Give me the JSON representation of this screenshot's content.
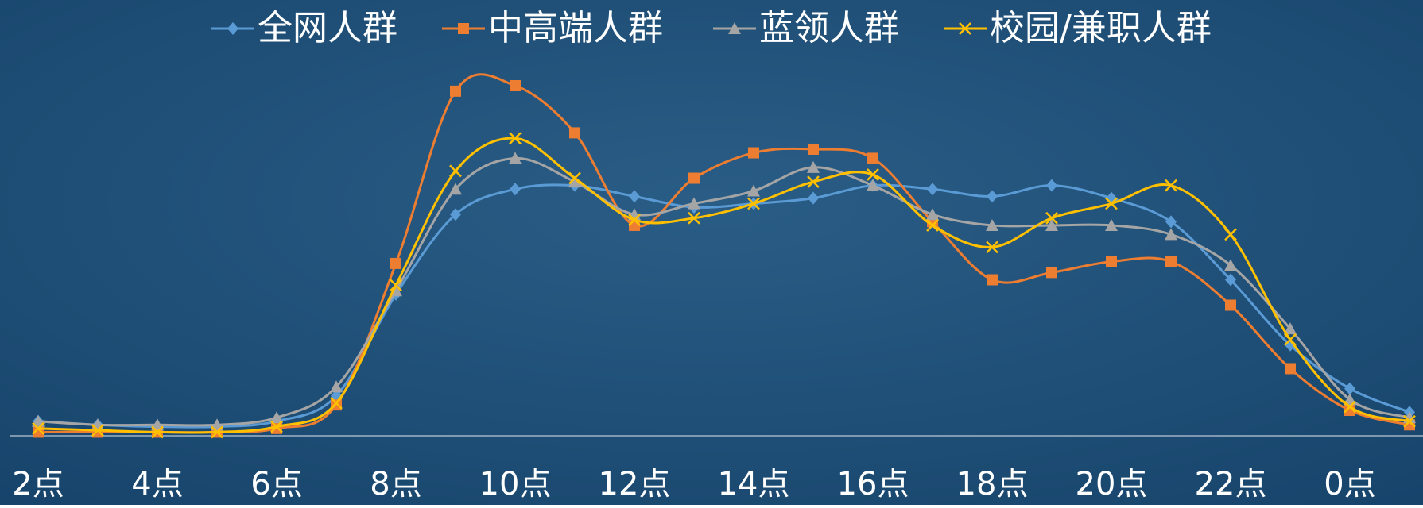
{
  "chart_data": {
    "type": "line",
    "categories": [
      "2点",
      null,
      "4点",
      null,
      "6点",
      null,
      "8点",
      null,
      "10点",
      null,
      "12点",
      null,
      "14点",
      null,
      "16点",
      null,
      "18点",
      null,
      "20点",
      null,
      "22点",
      null,
      "0点",
      null
    ],
    "ylim": [
      0,
      100
    ],
    "smooth": true,
    "legend": "top",
    "series": [
      {
        "name": "全网人群",
        "color": "#5b9bd5",
        "marker": "diamond",
        "values": [
          4,
          3,
          2.5,
          2.5,
          4,
          11,
          39,
          61,
          68,
          69,
          66,
          63,
          64,
          65.5,
          69,
          68,
          66,
          69,
          65.5,
          59,
          43,
          25,
          13,
          6.5
        ]
      },
      {
        "name": "中高端人群",
        "color": "#ed7d31",
        "marker": "square",
        "values": [
          1,
          1,
          1,
          1,
          2,
          8.5,
          47.5,
          95,
          96.5,
          83.5,
          58,
          71,
          78,
          79,
          76.5,
          59,
          43,
          45,
          48,
          48,
          36,
          18.5,
          7,
          3
        ]
      },
      {
        "name": "蓝领人群",
        "color": "#a5a5a5",
        "marker": "triangle",
        "values": [
          4,
          3,
          3,
          3,
          5,
          13.5,
          40,
          68,
          76.5,
          70,
          61,
          64,
          67.5,
          74,
          69,
          61,
          58,
          58,
          58,
          55.5,
          47,
          29.5,
          10,
          5
        ]
      },
      {
        "name": "校园/兼职人群",
        "color": "#ffc000",
        "marker": "x",
        "values": [
          2,
          1.5,
          1,
          1,
          2.5,
          9,
          41.5,
          73,
          82,
          71,
          59.5,
          60,
          64,
          70,
          72,
          58,
          52,
          60,
          64,
          69,
          55.5,
          26.5,
          8,
          4
        ]
      }
    ]
  }
}
